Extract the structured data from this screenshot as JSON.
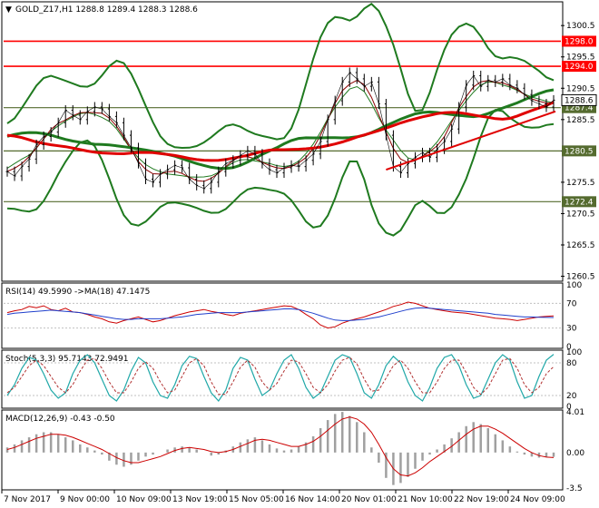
{
  "chart_data": {
    "type": "line",
    "symbol": "GOLD_Z17,H1",
    "ohlc_header": "1288.8 1289.4 1288.3 1288.6",
    "title": "GOLD_Z17,H1  1288.8 1289.4 1288.3 1288.6",
    "price_axis": {
      "ylim": [
        1260.0,
        1304.0
      ],
      "ticks": [
        "1300.5",
        "1295.5",
        "1290.5",
        "1285.5",
        "1280.5",
        "1275.5",
        "1270.5",
        "1265.5",
        "1260.5"
      ]
    },
    "horizontal_levels": [
      {
        "label": "1298.0",
        "value": 1298.0,
        "color": "#ff0000"
      },
      {
        "label": "1294.0",
        "value": 1294.0,
        "color": "#ff0000"
      },
      {
        "label": "1287.4",
        "value": 1287.4,
        "color": "#556b2f"
      },
      {
        "label": "1280.5",
        "value": 1280.5,
        "color": "#556b2f"
      },
      {
        "label": "1272.4",
        "value": 1272.4,
        "color": "#556b2f"
      }
    ],
    "last_price": {
      "label": "1288.6",
      "value": 1288.6
    },
    "x_ticks": [
      "7 Nov 2017",
      "9 Nov 00:00",
      "10 Nov 09:00",
      "13 Nov 19:00",
      "15 Nov 05:00",
      "16 Nov 14:00",
      "20 Nov 01:00",
      "21 Nov 10:00",
      "22 Nov 19:00",
      "24 Nov 09:00"
    ],
    "series": [
      {
        "values": [
          1277.2,
          1276.5,
          1278.0,
          1279.2,
          1281.5,
          1282.8,
          1283.5,
          1285.0,
          1287.0,
          1286.2,
          1285.5,
          1286.8,
          1287.5,
          1287.2,
          1286.0,
          1285.0,
          1283.0,
          1281.0,
          1278.5,
          1276.0,
          1275.5,
          1276.8,
          1277.5,
          1278.2,
          1277.8,
          1276.0,
          1275.0,
          1274.5,
          1275.5,
          1277.2,
          1278.5,
          1279.0,
          1279.8,
          1280.5,
          1280.0,
          1278.5,
          1277.5,
          1277.0,
          1277.8,
          1278.2,
          1278.0,
          1279.0,
          1280.0,
          1282.0,
          1285.5,
          1288.5,
          1291.5,
          1293.0,
          1292.0,
          1290.8,
          1291.5,
          1288.0,
          1283.0,
          1278.0,
          1277.0,
          1278.5,
          1279.5,
          1280.2,
          1279.5,
          1280.8,
          1282.0,
          1284.0,
          1287.5,
          1291.0,
          1292.5,
          1290.8,
          1291.8,
          1291.5,
          1292.0,
          1291.0,
          1290.5,
          1289.5,
          1288.5,
          1288.0,
          1287.5,
          1288.6
        ],
        "color": "#000000"
      }
    ],
    "indicators": [
      {
        "label": "RSI(14) 49.5990  ->MA(18) 47.1475",
        "axis": [
          "100",
          "70",
          "30",
          "0"
        ],
        "ylim": [
          0,
          100
        ],
        "rsi_color": "#cc0000",
        "ma_color": "#1f3fcc",
        "values": [
          55,
          58,
          60,
          65,
          63,
          66,
          60,
          58,
          62,
          56,
          55,
          52,
          48,
          45,
          40,
          38,
          42,
          45,
          48,
          44,
          40,
          42,
          46,
          50,
          53,
          56,
          58,
          60,
          57,
          55,
          52,
          50,
          54,
          56,
          58,
          60,
          62,
          64,
          66,
          65,
          60,
          52,
          45,
          35,
          30,
          32,
          38,
          42,
          45,
          48,
          52,
          56,
          60,
          65,
          68,
          72,
          70,
          66,
          62,
          60,
          58,
          56,
          55,
          54,
          52,
          50,
          48,
          46,
          45,
          44,
          42,
          44,
          46,
          48,
          49,
          49.6
        ],
        "ma": [
          52,
          54,
          55,
          56,
          57,
          58,
          59,
          58,
          57,
          56,
          55,
          53,
          51,
          49,
          47,
          45,
          44,
          44,
          45,
          45,
          45,
          45,
          46,
          47,
          48,
          50,
          52,
          53,
          54,
          55,
          55,
          55,
          55,
          56,
          57,
          58,
          59,
          60,
          61,
          61,
          60,
          57,
          54,
          50,
          46,
          43,
          42,
          42,
          43,
          44,
          46,
          48,
          51,
          54,
          57,
          60,
          62,
          63,
          62,
          61,
          60,
          59,
          58,
          57,
          56,
          55,
          54,
          52,
          51,
          50,
          49,
          48,
          48,
          47.5,
          47.2,
          47.1
        ]
      },
      {
        "label": "Stoch(5,3,3) 95.7143 72.9491",
        "axis": [
          "100",
          "80",
          "20",
          "0"
        ],
        "ylim": [
          0,
          100
        ],
        "main_color": "#20a8a8",
        "signal_color": "#b03030",
        "values": [
          20,
          40,
          70,
          90,
          85,
          60,
          30,
          15,
          25,
          60,
          85,
          95,
          80,
          50,
          20,
          10,
          30,
          65,
          90,
          80,
          45,
          20,
          15,
          40,
          75,
          92,
          88,
          55,
          25,
          10,
          30,
          70,
          90,
          85,
          50,
          20,
          30,
          60,
          85,
          95,
          70,
          35,
          15,
          25,
          55,
          85,
          95,
          90,
          60,
          25,
          15,
          40,
          75,
          92,
          80,
          45,
          20,
          10,
          35,
          70,
          90,
          95,
          75,
          40,
          15,
          20,
          50,
          80,
          95,
          85,
          45,
          15,
          20,
          55,
          85,
          95.7
        ],
        "signal": [
          25,
          35,
          55,
          75,
          85,
          75,
          55,
          35,
          25,
          40,
          65,
          85,
          88,
          70,
          45,
          25,
          25,
          45,
          70,
          82,
          70,
          45,
          25,
          30,
          55,
          80,
          88,
          75,
          45,
          22,
          22,
          45,
          72,
          85,
          72,
          45,
          30,
          42,
          65,
          85,
          82,
          60,
          35,
          25,
          40,
          65,
          85,
          90,
          78,
          50,
          28,
          30,
          52,
          75,
          85,
          70,
          45,
          25,
          25,
          45,
          70,
          85,
          85,
          62,
          35,
          22,
          35,
          60,
          85,
          88,
          70,
          40,
          25,
          35,
          60,
          73
        ]
      },
      {
        "label": "MACD(12,26,9) -0.43 -0.50",
        "axis": [
          "4.01",
          "0.00",
          "-3.5"
        ],
        "ylim": [
          -3.5,
          4.01
        ],
        "hist_color": "#a0a0a0",
        "signal_color": "#cc0000",
        "hist": [
          0.5,
          0.8,
          1.2,
          1.5,
          1.8,
          2.0,
          2.0,
          1.8,
          1.5,
          1.2,
          0.8,
          0.5,
          0.2,
          -0.2,
          -0.8,
          -1.2,
          -1.4,
          -1.2,
          -0.8,
          -0.4,
          -0.2,
          0.0,
          0.3,
          0.5,
          0.6,
          0.5,
          0.3,
          0.0,
          -0.3,
          -0.2,
          0.2,
          0.6,
          1.0,
          1.3,
          1.5,
          1.2,
          0.8,
          0.4,
          0.2,
          0.3,
          0.6,
          1.0,
          1.6,
          2.4,
          3.2,
          3.8,
          4.0,
          3.6,
          3.0,
          2.0,
          0.5,
          -1.0,
          -2.5,
          -3.2,
          -3.0,
          -2.4,
          -1.6,
          -0.8,
          -0.2,
          0.3,
          0.8,
          1.4,
          2.0,
          2.6,
          3.0,
          2.8,
          2.4,
          1.8,
          1.2,
          0.6,
          0.1,
          -0.2,
          -0.4,
          -0.5,
          -0.45,
          -0.43
        ],
        "signal": [
          0.3,
          0.5,
          0.8,
          1.1,
          1.4,
          1.6,
          1.8,
          1.8,
          1.7,
          1.5,
          1.2,
          0.9,
          0.6,
          0.3,
          -0.1,
          -0.5,
          -0.8,
          -1.0,
          -1.0,
          -0.8,
          -0.6,
          -0.4,
          -0.1,
          0.2,
          0.4,
          0.5,
          0.4,
          0.3,
          0.1,
          0.0,
          0.1,
          0.3,
          0.6,
          0.9,
          1.2,
          1.3,
          1.2,
          1.0,
          0.8,
          0.6,
          0.6,
          0.8,
          1.1,
          1.6,
          2.2,
          2.8,
          3.3,
          3.5,
          3.3,
          2.8,
          2.0,
          0.8,
          -0.5,
          -1.6,
          -2.2,
          -2.3,
          -2.0,
          -1.5,
          -0.9,
          -0.4,
          0.1,
          0.6,
          1.2,
          1.8,
          2.3,
          2.6,
          2.6,
          2.3,
          1.9,
          1.4,
          0.9,
          0.4,
          0.0,
          -0.3,
          -0.45,
          -0.5
        ]
      }
    ],
    "colors": {
      "price": "#000000",
      "bollinger": "#1f7a1f",
      "ma_thin": "#8b0000",
      "ma_thick_green": "#1f7a1f",
      "ma_thick_red": "#e00000",
      "level_red": "#ff0000",
      "level_olive": "#556b2f",
      "tag_red": "#ff0000",
      "tag_green": "#556b2f"
    }
  }
}
